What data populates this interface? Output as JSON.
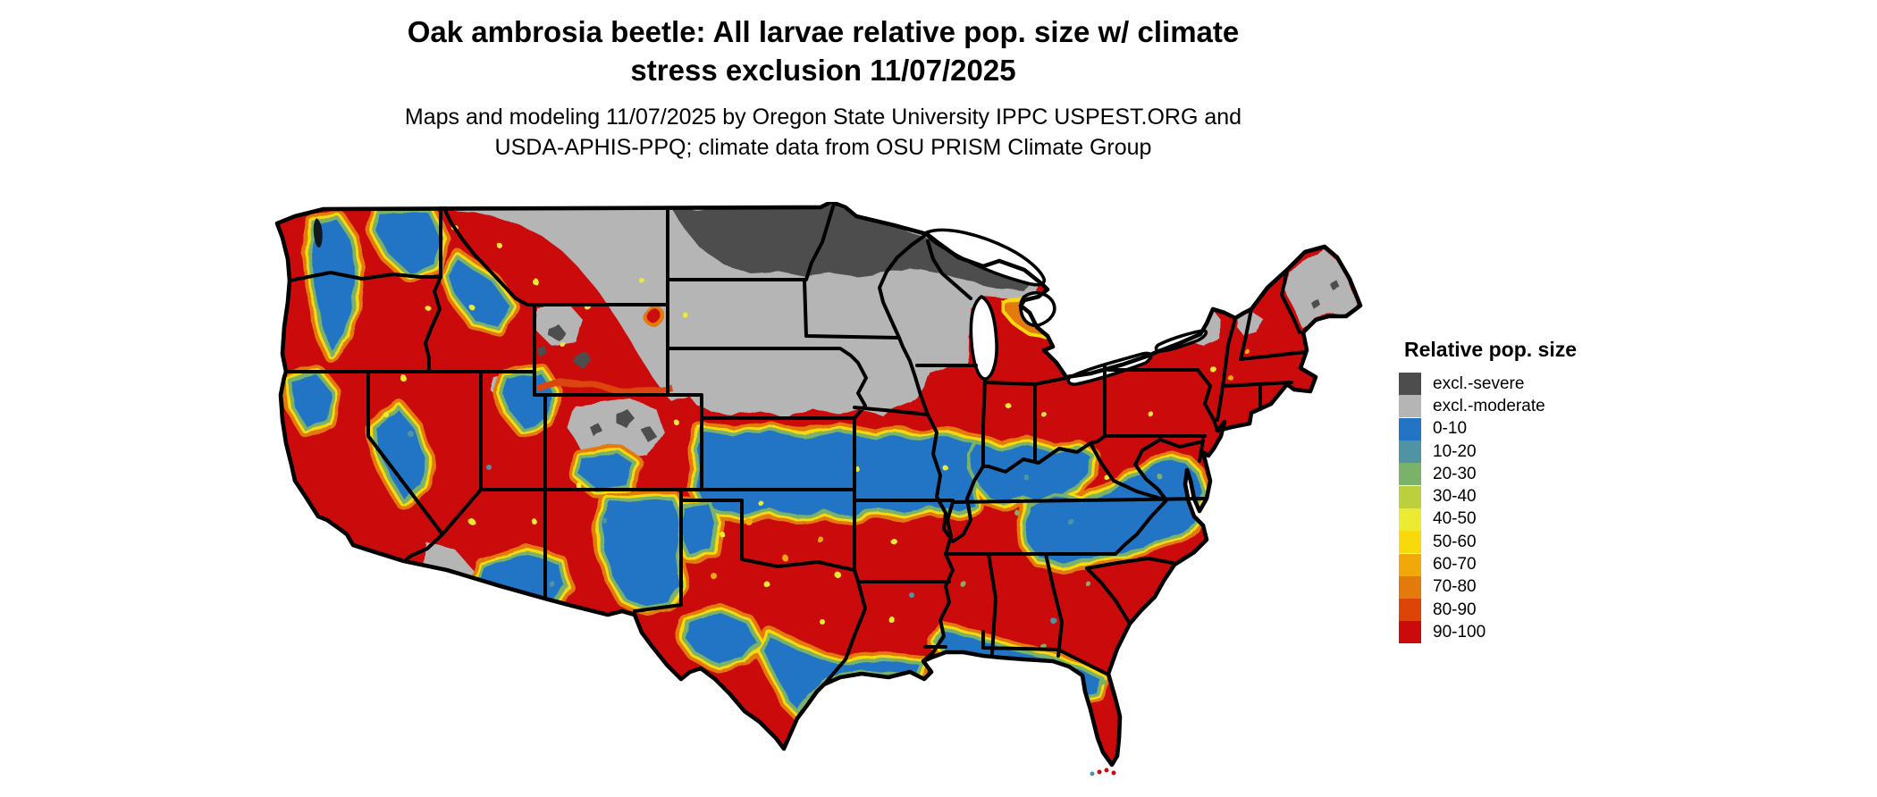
{
  "title": {
    "line1": "Oak ambrosia beetle: All larvae relative pop. size w/ climate",
    "line2": "stress exclusion 11/07/2025"
  },
  "subtitle": {
    "line1": "Maps and modeling 11/07/2025 by Oregon State University IPPC USPEST.ORG and",
    "line2": "USDA-APHIS-PPQ; climate data from OSU PRISM Climate Group"
  },
  "legend": {
    "title": "Relative pop. size",
    "items": [
      {
        "label": "excl.-severe",
        "color": "#4d4d4d"
      },
      {
        "label": "excl.-moderate",
        "color": "#b5b5b5"
      },
      {
        "label": "0-10",
        "color": "#2374c4"
      },
      {
        "label": "10-20",
        "color": "#4f93a5"
      },
      {
        "label": "20-30",
        "color": "#7ab26a"
      },
      {
        "label": "30-40",
        "color": "#bccf3c"
      },
      {
        "label": "40-50",
        "color": "#eceb33"
      },
      {
        "label": "50-60",
        "color": "#f8d90b"
      },
      {
        "label": "60-70",
        "color": "#f0a80a"
      },
      {
        "label": "70-80",
        "color": "#e27a0c"
      },
      {
        "label": "80-90",
        "color": "#dc4507"
      },
      {
        "label": "90-100",
        "color": "#cb0b0b"
      }
    ]
  },
  "palette": {
    "sev": "#4d4d4d",
    "mod": "#b5b5b5",
    "p0": "#2374c4",
    "p10": "#4f93a5",
    "p20": "#7ab26a",
    "p30": "#bccf3c",
    "p40": "#eceb33",
    "p50": "#f8d90b",
    "p60": "#f0a80a",
    "p70": "#e27a0c",
    "p80": "#dc4507",
    "p90": "#cb0b0b",
    "water": "#ffffff",
    "border": "#000000"
  }
}
